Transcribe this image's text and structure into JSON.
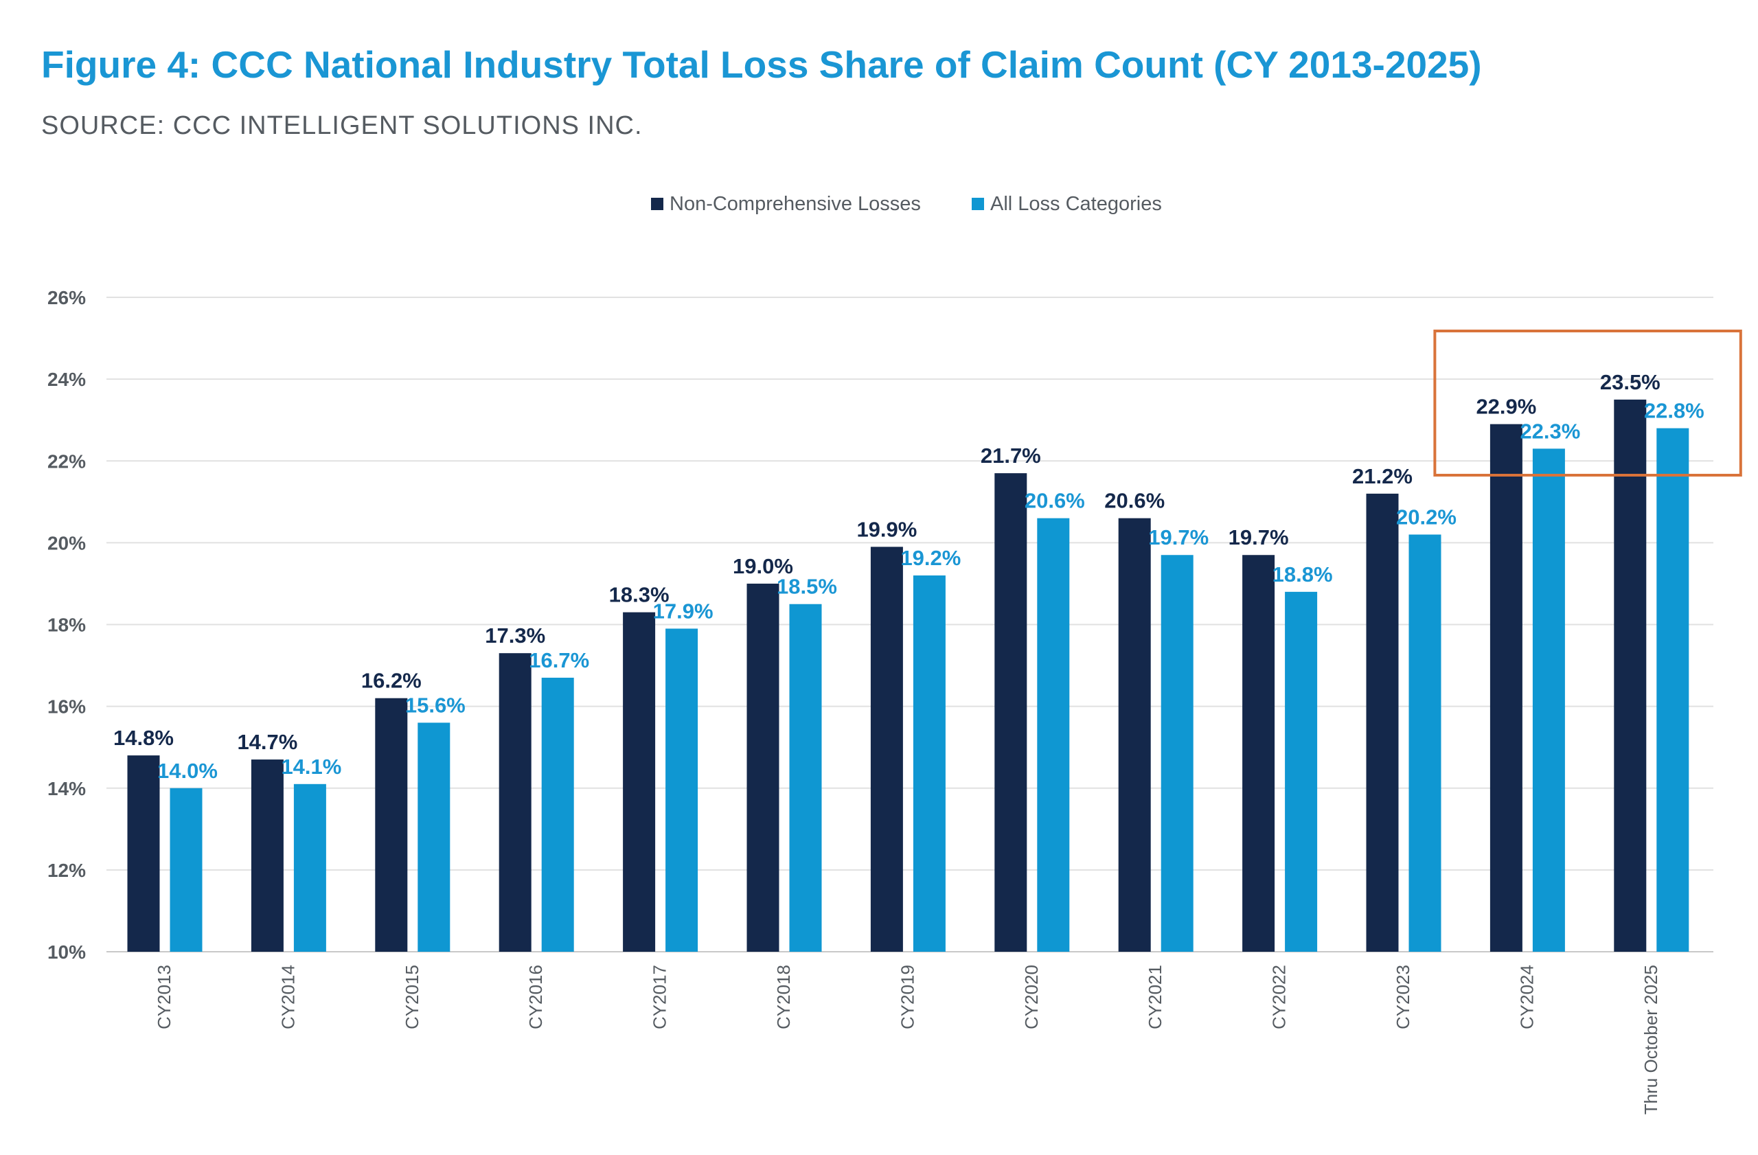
{
  "chart_data": {
    "type": "bar",
    "title": "Figure 4: CCC National Industry Total Loss Share of Claim Count (CY 2013-2025)",
    "subtitle": "SOURCE: CCC INTELLIGENT SOLUTIONS INC.",
    "xlabel": "",
    "ylabel": "",
    "ylim": [
      10,
      26
    ],
    "yticks": [
      10,
      12,
      14,
      16,
      18,
      20,
      22,
      24,
      26
    ],
    "ytick_suffix": "%",
    "grid": true,
    "legend_position": "top-center",
    "categories": [
      "CY2013",
      "CY2014",
      "CY2015",
      "CY2016",
      "CY2017",
      "CY2018",
      "CY2019",
      "CY2020",
      "CY2021",
      "CY2022",
      "CY2023",
      "CY2024",
      "Thru October 2025"
    ],
    "series": [
      {
        "name": "Non-Comprehensive Losses",
        "color": "#14284b",
        "label_color": "#14284b",
        "values": [
          14.8,
          14.7,
          16.2,
          17.3,
          18.3,
          19.0,
          19.9,
          21.7,
          20.6,
          19.7,
          21.2,
          22.9,
          23.5
        ]
      },
      {
        "name": "All Loss Categories",
        "color": "#0f97d2",
        "label_color": "#1a96d4",
        "values": [
          14.0,
          14.1,
          15.6,
          16.7,
          17.9,
          18.5,
          19.2,
          20.6,
          19.7,
          18.8,
          20.2,
          22.3,
          22.8
        ]
      }
    ],
    "annotation": {
      "type": "highlight-box",
      "color": "#d9733a",
      "categories": [
        "CY2024",
        "Thru October 2025"
      ]
    }
  }
}
